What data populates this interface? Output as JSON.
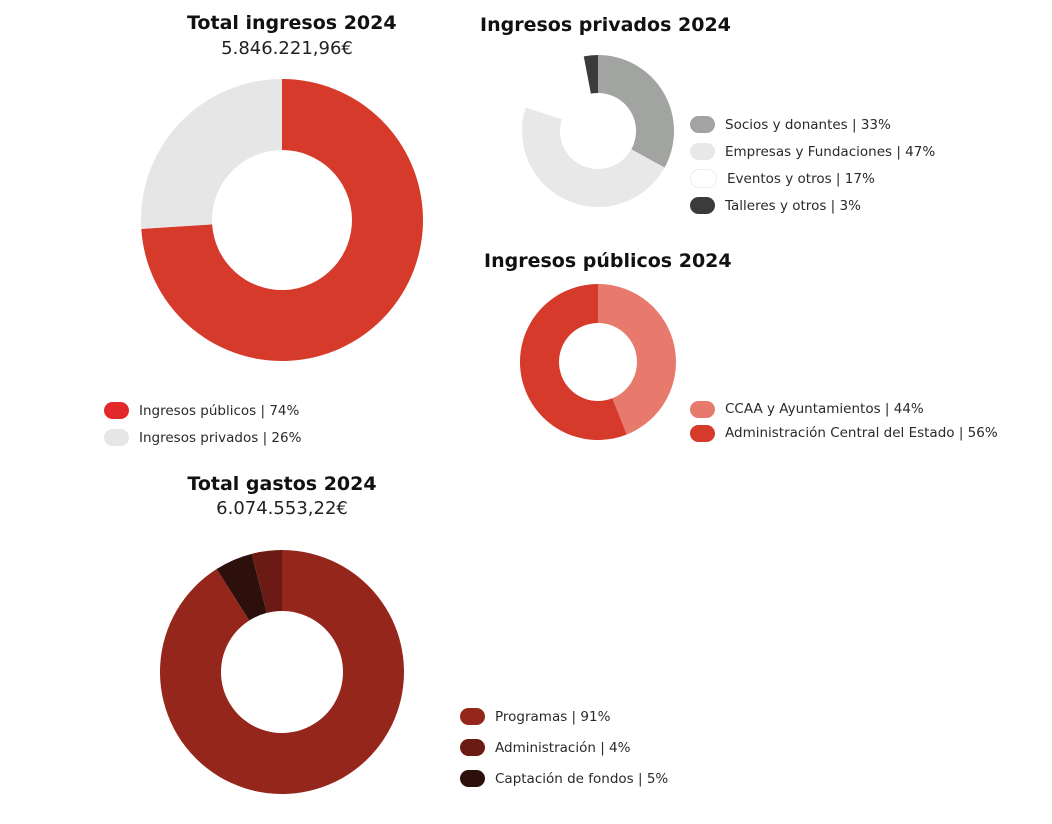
{
  "chart_data": [
    {
      "id": "total-ingresos",
      "type": "pie",
      "title": "Total ingresos 2024",
      "subtitle": "5.846.221,96€",
      "slices": [
        {
          "label": "Ingresos públicos",
          "value": 74,
          "color": "#d63a2a"
        },
        {
          "label": "Ingresos privados",
          "value": 26,
          "color": "#e6e6e6"
        }
      ],
      "legend": [
        {
          "text": "Ingresos públicos  | 74%",
          "color": "#e3282c"
        },
        {
          "text": "Ingresos privados | 26%",
          "color": "#e6e6e6"
        }
      ]
    },
    {
      "id": "ingresos-privados",
      "type": "pie",
      "title": "Ingresos privados 2024",
      "slices": [
        {
          "label": "Socios y donantes",
          "value": 33,
          "color": "#a1a4a0"
        },
        {
          "label": "Empresas y Fundaciones",
          "value": 47,
          "color": "#e8e8e8"
        },
        {
          "label": "Eventos y otros",
          "value": 17,
          "color": "#ffffff"
        },
        {
          "label": "Talleres y otros",
          "value": 3,
          "color": "#3b3b3b"
        }
      ],
      "legend": [
        {
          "text": "Socios y donantes  | 33%",
          "color": "#a1a4a0"
        },
        {
          "text": "Empresas y Fundaciones | 47%",
          "color": "#e8e8e8"
        },
        {
          "text": "Eventos y otros | 17%",
          "color": "#ffffff"
        },
        {
          "text": "Talleres y otros | 3%",
          "color": "#3b3b3b"
        }
      ]
    },
    {
      "id": "ingresos-publicos",
      "type": "pie",
      "title": "Ingresos públicos 2024",
      "slices": [
        {
          "label": "CCAA y Ayuntamientos",
          "value": 44,
          "color": "#e77a6c"
        },
        {
          "label": "Administración Central del Estado",
          "value": 56,
          "color": "#d63a2a"
        }
      ],
      "legend": [
        {
          "text": "CCAA y Ayuntamientos | 44%",
          "color": "#e77a6c"
        },
        {
          "text": "Administración Central del Estado | 56%",
          "color": "#d63a2a"
        }
      ]
    },
    {
      "id": "total-gastos",
      "type": "pie",
      "title": "Total gastos 2024",
      "subtitle": "6.074.553,22€",
      "slices": [
        {
          "label": "Programas",
          "value": 91,
          "color": "#94261c"
        },
        {
          "label": "Captación de fondos",
          "value": 5,
          "color": "#2d0f0c"
        },
        {
          "label": "Administración",
          "value": 4,
          "color": "#6b1a14"
        }
      ],
      "legend": [
        {
          "text": "Programas  | 91%",
          "color": "#94261c"
        },
        {
          "text": "Administración | 4%",
          "color": "#6b1a14"
        },
        {
          "text": "Captación de fondos | 5%",
          "color": "#2d0f0c"
        }
      ]
    }
  ]
}
